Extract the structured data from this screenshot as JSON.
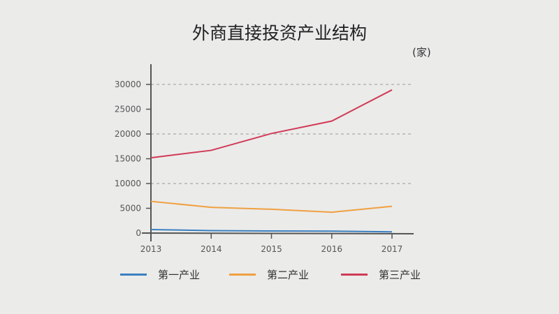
{
  "chart_data": {
    "type": "line",
    "title": "外商直接投资产业结构",
    "unit": "(家)",
    "xlabel": "",
    "ylabel": "",
    "categories": [
      "2013",
      "2014",
      "2015",
      "2016",
      "2017"
    ],
    "ylim": [
      0,
      30000
    ],
    "yticks": [
      "0",
      "5000",
      "10000",
      "15000",
      "20000",
      "25000",
      "30000"
    ],
    "grid": "dashed horizontal at 10000, 20000, 30000",
    "legend_position": "bottom",
    "series": [
      {
        "name": "第一产业",
        "color": "#3a7fc0",
        "values": [
          700,
          500,
          420,
          380,
          250
        ]
      },
      {
        "name": "第二产业",
        "color": "#f0a040",
        "values": [
          6400,
          5200,
          4800,
          4200,
          5400
        ]
      },
      {
        "name": "第三产业",
        "color": "#d13a55",
        "values": [
          15200,
          16700,
          20100,
          22600,
          28900
        ]
      }
    ]
  }
}
